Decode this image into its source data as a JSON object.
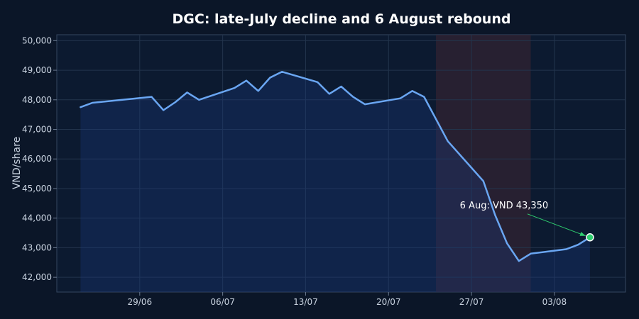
{
  "chart_data": {
    "type": "line",
    "title": "DGC: late-July decline and 6 August rebound",
    "xlabel": "",
    "ylabel": "VND/share",
    "ylim": [
      41500,
      50200
    ],
    "xlim": [
      "2025-06-22T00:00",
      "2025-08-09T00:00"
    ],
    "y_ticks": [
      42000,
      43000,
      44000,
      45000,
      46000,
      47000,
      48000,
      49000,
      50000
    ],
    "y_tick_labels": [
      "42,000",
      "43,000",
      "44,000",
      "45,000",
      "46,000",
      "47,000",
      "48,000",
      "49,000",
      "50,000"
    ],
    "x_ticks": [
      "2025-06-29",
      "2025-07-06",
      "2025-07-13",
      "2025-07-20",
      "2025-07-27",
      "2025-08-03"
    ],
    "x_tick_labels": [
      "29/06",
      "06/07",
      "13/07",
      "20/07",
      "27/07",
      "03/08"
    ],
    "grid": true,
    "highlight_range": [
      "2025-07-24",
      "2025-08-01"
    ],
    "series": [
      {
        "color": "#6aa6f2",
        "points": [
          [
            "2025-06-24",
            47750
          ],
          [
            "2025-06-25",
            47900
          ],
          [
            "2025-06-30",
            48100
          ],
          [
            "2025-07-01",
            47650
          ],
          [
            "2025-07-02",
            47920
          ],
          [
            "2025-07-03",
            48250
          ],
          [
            "2025-07-04",
            48000
          ],
          [
            "2025-07-07",
            48400
          ],
          [
            "2025-07-08",
            48650
          ],
          [
            "2025-07-09",
            48300
          ],
          [
            "2025-07-10",
            48750
          ],
          [
            "2025-07-11",
            48950
          ],
          [
            "2025-07-14",
            48600
          ],
          [
            "2025-07-15",
            48200
          ],
          [
            "2025-07-16",
            48450
          ],
          [
            "2025-07-17",
            48100
          ],
          [
            "2025-07-18",
            47850
          ],
          [
            "2025-07-21",
            48050
          ],
          [
            "2025-07-22",
            48300
          ],
          [
            "2025-07-23",
            48100
          ],
          [
            "2025-07-25",
            46600
          ],
          [
            "2025-07-28",
            45250
          ],
          [
            "2025-07-29",
            44100
          ],
          [
            "2025-07-30",
            43150
          ],
          [
            "2025-07-31",
            42550
          ],
          [
            "2025-08-01",
            42800
          ],
          [
            "2025-08-04",
            42950
          ],
          [
            "2025-08-05",
            43100
          ],
          [
            "2025-08-06",
            43350
          ]
        ]
      }
    ],
    "annotation": {
      "text": "6 Aug: VND 43,350",
      "x": "2025-08-06",
      "y": 43350,
      "color": "#2fcf6f"
    }
  }
}
